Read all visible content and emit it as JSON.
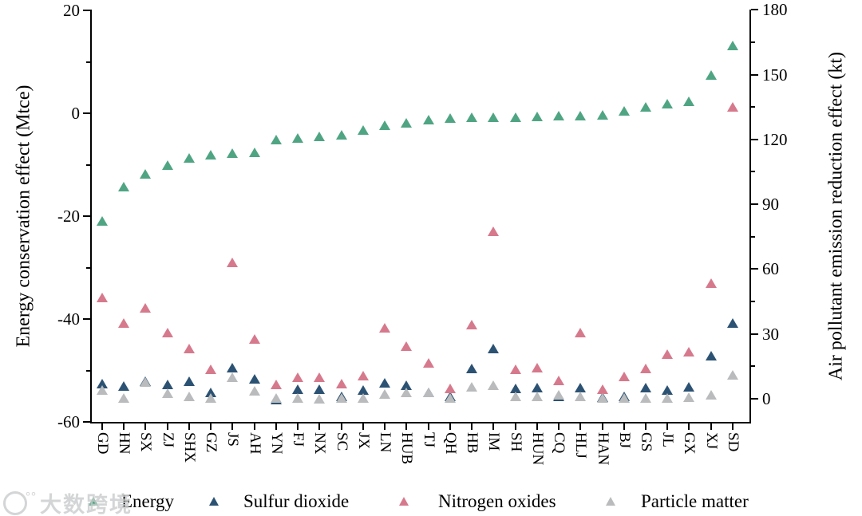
{
  "axes": {
    "left": {
      "title": "Energy conservation effect (Mtce)",
      "unit": "Mtce",
      "range": [
        -60,
        20
      ],
      "major_ticks": [
        20,
        0,
        -20,
        -40,
        -60
      ],
      "minor_ticks": [
        10,
        -10,
        -30,
        -50
      ]
    },
    "right": {
      "title": "Air pollutant emission reduction effect (kt)",
      "unit": "kt",
      "range": [
        -10,
        180
      ],
      "major_ticks": [
        180,
        150,
        120,
        90,
        60,
        30,
        0
      ],
      "minor_ticks": [
        165,
        135,
        105,
        75,
        45,
        15
      ]
    }
  },
  "legend": {
    "items": [
      {
        "label": "Energy",
        "color": "#4FA583"
      },
      {
        "label": "Sulfur dioxide",
        "color": "#2C5273"
      },
      {
        "label": "Nitrogen oxides",
        "color": "#D6798C"
      },
      {
        "label": "Particle matter",
        "color": "#B9BBBD"
      }
    ]
  },
  "watermark": {
    "text": "大数跨境"
  },
  "chart_data": {
    "type": "scatter",
    "marker": "triangle-up",
    "legend_position": "bottom",
    "grid": false,
    "categories": [
      "GD",
      "HN",
      "SX",
      "ZJ",
      "SHX",
      "GZ",
      "JS",
      "AH",
      "YN",
      "FJ",
      "NX",
      "SC",
      "JX",
      "LN",
      "HUB",
      "TJ",
      "QH",
      "HB",
      "IM",
      "SH",
      "HUN",
      "CQ",
      "HLJ",
      "HAN",
      "BJ",
      "GS",
      "JL",
      "GX",
      "XJ",
      "SD"
    ],
    "series": [
      {
        "name": "Energy",
        "axis": "left",
        "unit": "Mtce",
        "color": "#4FA583",
        "values": [
          -21.0,
          -14.2,
          -11.8,
          -10.0,
          -8.7,
          -8.1,
          -7.8,
          -7.6,
          -5.1,
          -4.8,
          -4.5,
          -4.2,
          -3.3,
          -2.4,
          -1.9,
          -1.3,
          -1.0,
          -0.8,
          -0.7,
          -0.7,
          -0.6,
          -0.5,
          -0.4,
          -0.3,
          0.5,
          1.2,
          1.8,
          2.3,
          7.4,
          13.2
        ]
      },
      {
        "name": "Sulfur dioxide",
        "axis": "right",
        "unit": "kt",
        "color": "#2C5273",
        "values": [
          7.0,
          6.0,
          8.0,
          6.5,
          8.0,
          2.8,
          14.5,
          9.2,
          -0.5,
          4.4,
          4.4,
          1.0,
          4.0,
          7.4,
          6.2,
          3.0,
          1.2,
          14.0,
          23.2,
          4.8,
          5.1,
          1.2,
          5.0,
          0.6,
          1.0,
          5.1,
          4.0,
          5.5,
          19.9,
          35.0
        ]
      },
      {
        "name": "Nitrogen oxides",
        "axis": "right",
        "unit": "kt",
        "color": "#D6798C",
        "values": [
          47.0,
          35.0,
          42.0,
          30.5,
          23.2,
          13.5,
          63.0,
          27.6,
          6.6,
          9.9,
          9.9,
          7.0,
          10.7,
          32.7,
          24.3,
          16.5,
          4.8,
          34.2,
          77.5,
          13.6,
          14.3,
          8.5,
          30.5,
          4.4,
          10.3,
          14.0,
          20.5,
          21.7,
          53.5,
          135.0
        ]
      },
      {
        "name": "Particle matter",
        "axis": "right",
        "unit": "kt",
        "color": "#B9BBBD",
        "values": [
          4.0,
          0.5,
          7.7,
          2.6,
          1.1,
          0.5,
          10.0,
          3.7,
          0.4,
          0.3,
          0.0,
          0.5,
          0.2,
          2.2,
          3.0,
          2.9,
          0.4,
          5.5,
          6.3,
          1.0,
          1.1,
          1.8,
          1.1,
          0.2,
          0.5,
          0.5,
          0.2,
          0.7,
          1.8,
          11.0
        ]
      }
    ]
  }
}
